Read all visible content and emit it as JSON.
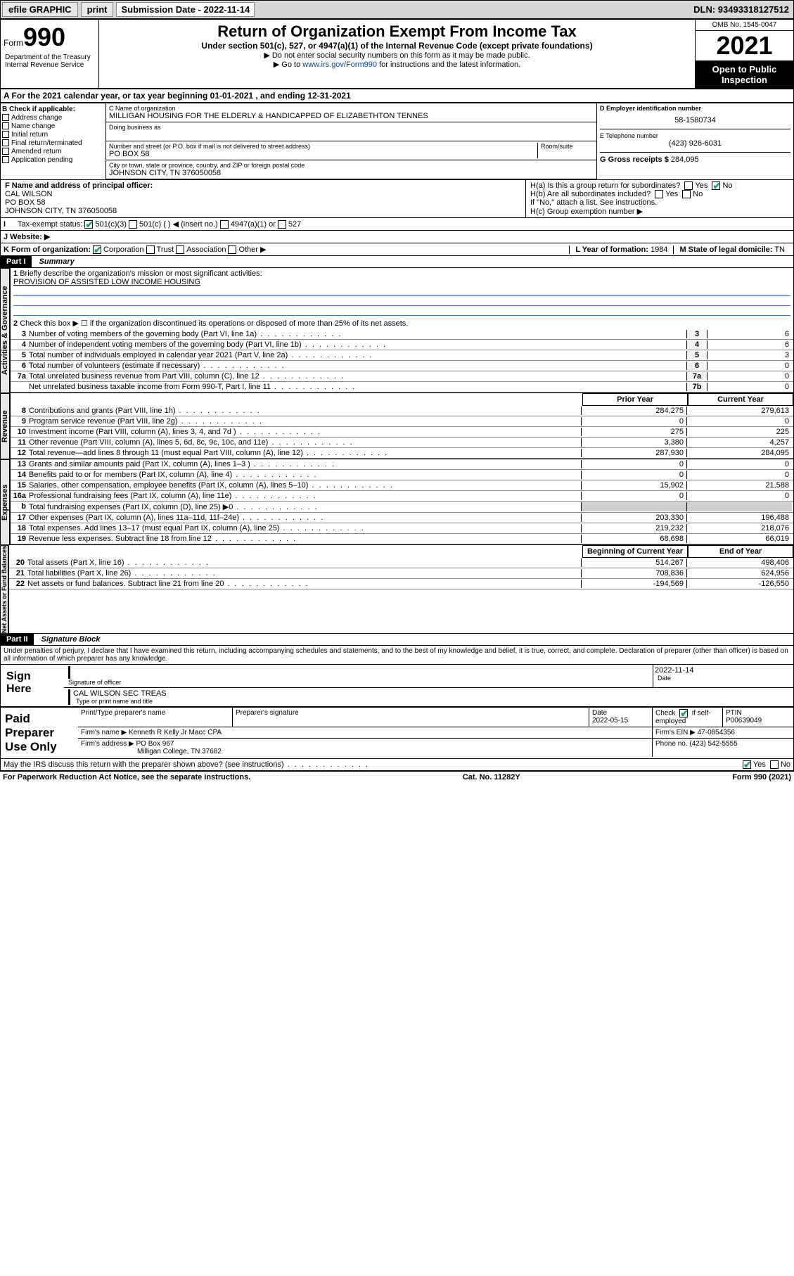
{
  "topbar": {
    "efile": "efile GRAPHIC",
    "print": "print",
    "sub_label": "Submission Date - 2022-11-14",
    "dln": "DLN: 93493318127512"
  },
  "header": {
    "form_label": "Form",
    "form_num": "990",
    "title": "Return of Organization Exempt From Income Tax",
    "sub1": "Under section 501(c), 527, or 4947(a)(1) of the Internal Revenue Code (except private foundations)",
    "sub2": "▶ Do not enter social security numbers on this form as it may be made public.",
    "sub3": "▶ Go to ",
    "link": "www.irs.gov/Form990",
    "sub3b": " for instructions and the latest information.",
    "omb": "OMB No. 1545-0047",
    "year": "2021",
    "open": "Open to Public Inspection",
    "dept": "Department of the Treasury\nInternal Revenue Service"
  },
  "line_a": "A For the 2021 calendar year, or tax year beginning 01-01-2021   , and ending 12-31-2021",
  "section_b": {
    "title": "B Check if applicable:",
    "opts": [
      "Address change",
      "Name change",
      "Initial return",
      "Final return/terminated",
      "Amended return",
      "Application pending"
    ]
  },
  "section_c": {
    "label": "C Name of organization",
    "name": "MILLIGAN HOUSING FOR THE ELDERLY & HANDICAPPED OF ELIZABETHTON TENNES",
    "dba_label": "Doing business as",
    "addr_label": "Number and street (or P.O. box if mail is not delivered to street address)",
    "room": "Room/suite",
    "addr": "PO BOX 58",
    "city_label": "City or town, state or province, country, and ZIP or foreign postal code",
    "city": "JOHNSON CITY, TN  376050058"
  },
  "section_d": {
    "label": "D Employer identification number",
    "ein": "58-1580734"
  },
  "section_e": {
    "label": "E Telephone number",
    "phone": "(423) 926-6031"
  },
  "section_g": {
    "label": "G Gross receipts $",
    "amount": "284,095"
  },
  "section_f": {
    "label": "F Name and address of principal officer:",
    "name": "CAL WILSON",
    "addr1": "PO BOX 58",
    "addr2": "JOHNSON CITY, TN  376050058"
  },
  "section_h": {
    "ha": "H(a)  Is this a group return for subordinates?",
    "hb": "H(b)  Are all subordinates included?",
    "note": "If \"No,\" attach a list. See instructions.",
    "hc": "H(c)  Group exemption number ▶",
    "yes": "Yes",
    "no": "No"
  },
  "section_i": {
    "label": "Tax-exempt status:",
    "o1": "501(c)(3)",
    "o2": "501(c) (   ) ◀ (insert no.)",
    "o3": "4947(a)(1) or",
    "o4": "527"
  },
  "section_j": {
    "label": "J    Website: ▶"
  },
  "section_k": {
    "label": "K Form of organization:",
    "o1": "Corporation",
    "o2": "Trust",
    "o3": "Association",
    "o4": "Other ▶"
  },
  "section_l": {
    "label": "L Year of formation:",
    "val": "1984"
  },
  "section_m": {
    "label": "M State of legal domicile:",
    "val": "TN"
  },
  "part1": {
    "header": "Part I",
    "title": "Summary",
    "l1": "Briefly describe the organization's mission or most significant activities:",
    "mission": "PROVISION OF ASSISTED LOW INCOME HOUSING",
    "l2": "Check this box ▶ ☐  if the organization discontinued its operations or disposed of more than 25% of its net assets.",
    "sidebar_gov": "Activities & Governance",
    "sidebar_rev": "Revenue",
    "sidebar_exp": "Expenses",
    "sidebar_net": "Net Assets or Fund Balances",
    "col_prior": "Prior Year",
    "col_current": "Current Year",
    "col_begin": "Beginning of Current Year",
    "col_end": "End of Year"
  },
  "gov_lines": [
    {
      "n": "3",
      "t": "Number of voting members of the governing body (Part VI, line 1a)",
      "box": "3",
      "v": "6"
    },
    {
      "n": "4",
      "t": "Number of independent voting members of the governing body (Part VI, line 1b)",
      "box": "4",
      "v": "6"
    },
    {
      "n": "5",
      "t": "Total number of individuals employed in calendar year 2021 (Part V, line 2a)",
      "box": "5",
      "v": "3"
    },
    {
      "n": "6",
      "t": "Total number of volunteers (estimate if necessary)",
      "box": "6",
      "v": "0"
    },
    {
      "n": "7a",
      "t": "Total unrelated business revenue from Part VIII, column (C), line 12",
      "box": "7a",
      "v": "0"
    },
    {
      "n": "",
      "t": "Net unrelated business taxable income from Form 990-T, Part I, line 11",
      "box": "7b",
      "v": "0"
    }
  ],
  "rev_lines": [
    {
      "n": "8",
      "t": "Contributions and grants (Part VIII, line 1h)",
      "p": "284,275",
      "c": "279,613"
    },
    {
      "n": "9",
      "t": "Program service revenue (Part VIII, line 2g)",
      "p": "0",
      "c": "0"
    },
    {
      "n": "10",
      "t": "Investment income (Part VIII, column (A), lines 3, 4, and 7d )",
      "p": "275",
      "c": "225"
    },
    {
      "n": "11",
      "t": "Other revenue (Part VIII, column (A), lines 5, 6d, 8c, 9c, 10c, and 11e)",
      "p": "3,380",
      "c": "4,257"
    },
    {
      "n": "12",
      "t": "Total revenue—add lines 8 through 11 (must equal Part VIII, column (A), line 12)",
      "p": "287,930",
      "c": "284,095"
    }
  ],
  "exp_lines": [
    {
      "n": "13",
      "t": "Grants and similar amounts paid (Part IX, column (A), lines 1–3 )",
      "p": "0",
      "c": "0"
    },
    {
      "n": "14",
      "t": "Benefits paid to or for members (Part IX, column (A), line 4)",
      "p": "0",
      "c": "0"
    },
    {
      "n": "15",
      "t": "Salaries, other compensation, employee benefits (Part IX, column (A), lines 5–10)",
      "p": "15,902",
      "c": "21,588"
    },
    {
      "n": "16a",
      "t": "Professional fundraising fees (Part IX, column (A), line 11e)",
      "p": "0",
      "c": "0"
    },
    {
      "n": "b",
      "t": "Total fundraising expenses (Part IX, column (D), line 25) ▶0",
      "p": "",
      "c": "",
      "shade": true
    },
    {
      "n": "17",
      "t": "Other expenses (Part IX, column (A), lines 11a–11d, 11f–24e)",
      "p": "203,330",
      "c": "196,488"
    },
    {
      "n": "18",
      "t": "Total expenses. Add lines 13–17 (must equal Part IX, column (A), line 25)",
      "p": "219,232",
      "c": "218,076"
    },
    {
      "n": "19",
      "t": "Revenue less expenses. Subtract line 18 from line 12",
      "p": "68,698",
      "c": "66,019"
    }
  ],
  "net_lines": [
    {
      "n": "20",
      "t": "Total assets (Part X, line 16)",
      "p": "514,267",
      "c": "498,406"
    },
    {
      "n": "21",
      "t": "Total liabilities (Part X, line 26)",
      "p": "708,836",
      "c": "624,956"
    },
    {
      "n": "22",
      "t": "Net assets or fund balances. Subtract line 21 from line 20",
      "p": "-194,569",
      "c": "-126,550"
    }
  ],
  "part2": {
    "header": "Part II",
    "title": "Signature Block",
    "decl": "Under penalties of perjury, I declare that I have examined this return, including accompanying schedules and statements, and to the best of my knowledge and belief, it is true, correct, and complete. Declaration of preparer (other than officer) is based on all information of which preparer has any knowledge.",
    "sign_here": "Sign Here",
    "sig_officer": "Signature of officer",
    "date": "Date",
    "sig_date": "2022-11-14",
    "name_title": "CAL WILSON  SEC TREAS",
    "type_name": "Type or print name and title"
  },
  "paid": {
    "label": "Paid Preparer Use Only",
    "c1": "Print/Type preparer's name",
    "c2": "Preparer's signature",
    "c3": "Date",
    "c3v": "2022-05-15",
    "c4": "Check ☑ if self-employed",
    "c5": "PTIN",
    "c5v": "P00639049",
    "firm_name_l": "Firm's name    ▶",
    "firm_name": "Kenneth R Kelly Jr Macc CPA",
    "firm_ein_l": "Firm's EIN ▶",
    "firm_ein": "47-0854356",
    "firm_addr_l": "Firm's address ▶",
    "firm_addr1": "PO Box 967",
    "firm_addr2": "Milligan College, TN  37682",
    "phone_l": "Phone no.",
    "phone": "(423) 542-5555"
  },
  "discuss": {
    "text": "May the IRS discuss this return with the preparer shown above? (see instructions)",
    "yes": "Yes",
    "no": "No"
  },
  "footer": {
    "l": "For Paperwork Reduction Act Notice, see the separate instructions.",
    "c": "Cat. No. 11282Y",
    "r": "Form 990 (2021)"
  }
}
